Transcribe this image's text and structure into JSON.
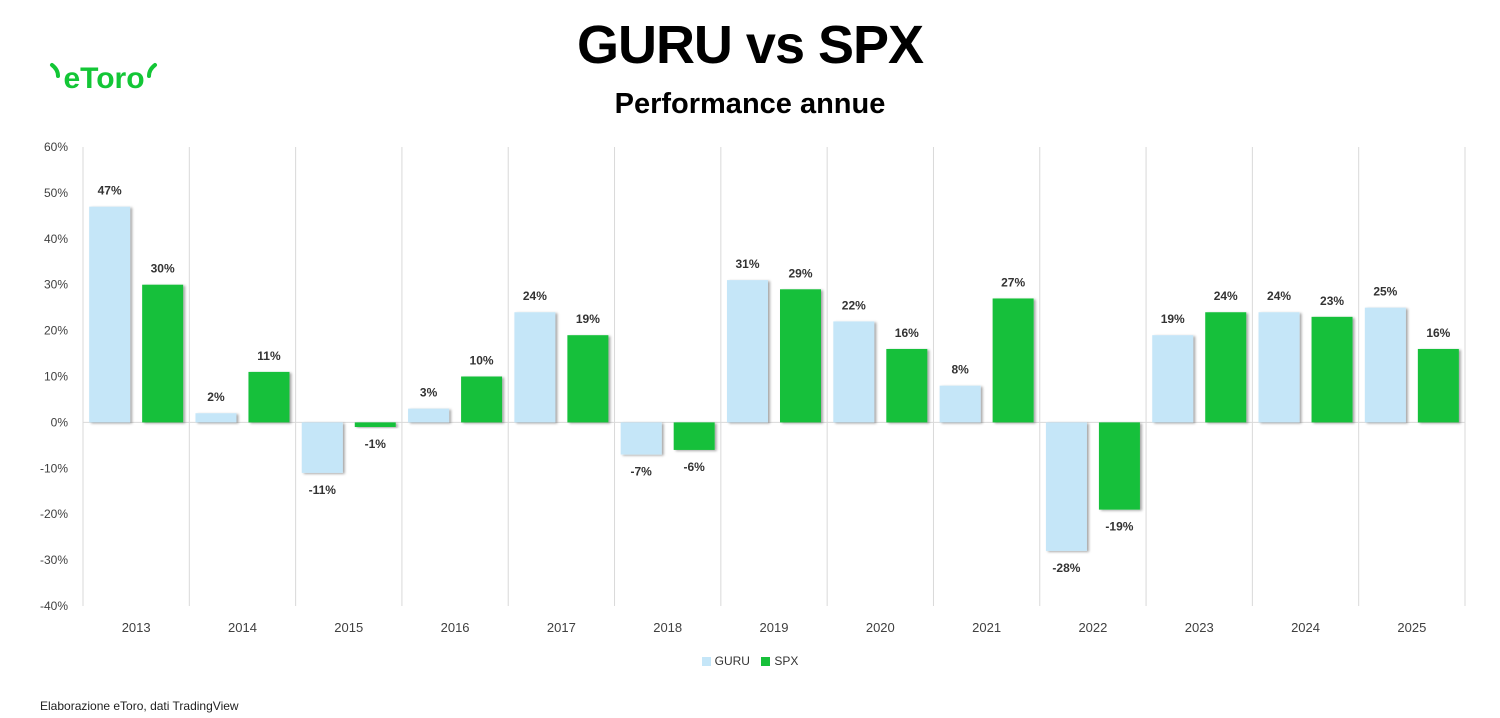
{
  "header": {
    "logo_text": "eToro",
    "title": "GURU vs SPX",
    "subtitle": "Performance annue"
  },
  "colors": {
    "guru": "#c5e6f8",
    "spx": "#17c03a",
    "logo": "#13c636",
    "grid": "#d9d9d9"
  },
  "chart_data": {
    "type": "bar",
    "title": "GURU vs SPX",
    "subtitle": "Performance annue",
    "xlabel": "",
    "ylabel": "",
    "categories": [
      "2013",
      "2014",
      "2015",
      "2016",
      "2017",
      "2018",
      "2019",
      "2020",
      "2021",
      "2022",
      "2023",
      "2024",
      "2025"
    ],
    "series": [
      {
        "name": "GURU",
        "values": [
          47,
          2,
          -11,
          3,
          24,
          -7,
          31,
          22,
          8,
          -28,
          19,
          24,
          25
        ],
        "labels": [
          "47%",
          "2%",
          "-11%",
          "3%",
          "24%",
          "-7%",
          "31%",
          "22%",
          "8%",
          "-28%",
          "19%",
          "24%",
          "25%"
        ]
      },
      {
        "name": "SPX",
        "values": [
          30,
          11,
          -1,
          10,
          19,
          -6,
          29,
          16,
          27,
          -19,
          24,
          23,
          16
        ],
        "labels": [
          "30%",
          "11%",
          "-1%",
          "10%",
          "19%",
          "-6%",
          "29%",
          "16%",
          "27%",
          "-19%",
          "24%",
          "23%",
          "16%"
        ]
      }
    ],
    "ylim": [
      -40,
      60
    ],
    "yticks": [
      -40,
      -30,
      -20,
      -10,
      0,
      10,
      20,
      30,
      40,
      50,
      60
    ],
    "ytick_labels": [
      "-40%",
      "-30%",
      "-20%",
      "-10%",
      "0%",
      "10%",
      "20%",
      "30%",
      "40%",
      "50%",
      "60%"
    ],
    "grid": "vertical category separators",
    "legend": "bottom-center"
  },
  "footer": {
    "source": "Elaborazione eToro, dati TradingView"
  }
}
